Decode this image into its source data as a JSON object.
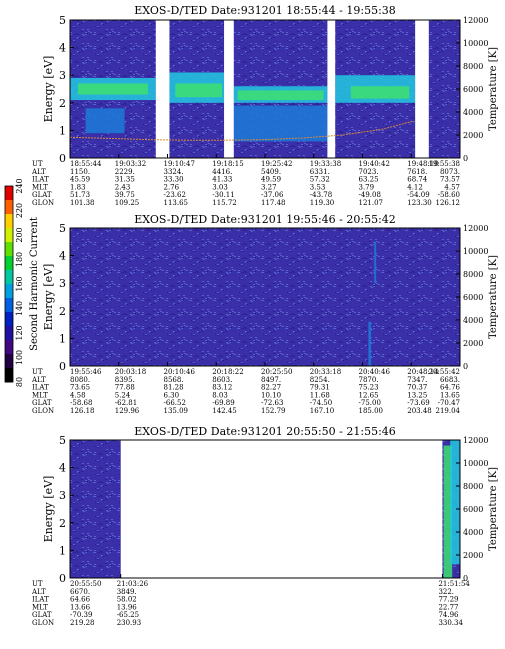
{
  "colors": {
    "background": "#3a2fa8",
    "speckle_dark": "#2a1f90",
    "speckle_light": "#5560c8",
    "band_cyan": "#22c8e0",
    "band_green": "#3fe070",
    "band_blue": "#1c7ad8",
    "gap": "#ffffff",
    "temperature_line": "#d88a3a"
  },
  "colorbar": {
    "label": "Second Harmonic Current",
    "ticks": [
      "240",
      "220",
      "200",
      "180",
      "160",
      "140",
      "120",
      "100",
      "80"
    ],
    "colors": [
      "#e00000",
      "#ff6000",
      "#ffd000",
      "#d0f000",
      "#60e000",
      "#00d030",
      "#00c8a0",
      "#00a0e0",
      "#0060e0",
      "#0020c0",
      "#2010a0",
      "#400880",
      "#200040",
      "#000000"
    ]
  },
  "row_labels": [
    "UT",
    "ALT",
    "ILAT",
    "MLT",
    "GLAT",
    "GLON"
  ],
  "chart_data": [
    {
      "type": "heatmap",
      "title": "EXOS-D/TED   Date:931201   18:55:44 - 19:55:38",
      "ylabel": "Energy [eV]",
      "y2label": "Temperature [K]",
      "yticks": [
        "0",
        "1",
        "2",
        "3",
        "4",
        "5"
      ],
      "ylim": [
        0,
        5
      ],
      "y2ticks": [
        "0",
        "2000",
        "4000",
        "6000",
        "8000",
        "10000",
        "12000"
      ],
      "y2lim": [
        0,
        12000
      ],
      "gaps": [
        [
          0.22,
          0.255
        ],
        [
          0.395,
          0.42
        ],
        [
          0.66,
          0.68
        ],
        [
          0.885,
          0.92
        ]
      ],
      "bands": [
        {
          "x": [
            0.0,
            0.22
          ],
          "y": [
            2.1,
            2.9
          ],
          "color": "band_cyan"
        },
        {
          "x": [
            0.02,
            0.2
          ],
          "y": [
            2.3,
            2.7
          ],
          "color": "band_green"
        },
        {
          "x": [
            0.255,
            0.395
          ],
          "y": [
            2.0,
            3.1
          ],
          "color": "band_cyan"
        },
        {
          "x": [
            0.27,
            0.39
          ],
          "y": [
            2.2,
            2.7
          ],
          "color": "band_green"
        },
        {
          "x": [
            0.42,
            0.66
          ],
          "y": [
            2.0,
            2.6
          ],
          "color": "band_cyan"
        },
        {
          "x": [
            0.43,
            0.65
          ],
          "y": [
            2.1,
            2.45
          ],
          "color": "band_green"
        },
        {
          "x": [
            0.68,
            0.885
          ],
          "y": [
            2.0,
            3.0
          ],
          "color": "band_cyan"
        },
        {
          "x": [
            0.72,
            0.87
          ],
          "y": [
            2.15,
            2.6
          ],
          "color": "band_green"
        },
        {
          "x": [
            0.42,
            0.66
          ],
          "y": [
            0.6,
            1.9
          ],
          "color": "band_blue"
        },
        {
          "x": [
            0.04,
            0.14
          ],
          "y": [
            0.9,
            1.8
          ],
          "color": "band_blue"
        }
      ],
      "temperature": {
        "x": [
          0.0,
          0.1,
          0.2,
          0.3,
          0.4,
          0.5,
          0.6,
          0.7,
          0.8,
          0.88
        ],
        "y": [
          1800,
          1700,
          1600,
          1550,
          1550,
          1600,
          1750,
          2000,
          2500,
          3200
        ]
      },
      "table": [
        [
          "18:55:44",
          "19:03:32",
          "19:10:47",
          "19:18:15",
          "19:25:42",
          "19:33:38",
          "19:40:42",
          "19:48:10",
          "19:55:38"
        ],
        [
          "1150.",
          "2229.",
          "3324.",
          "4416.",
          "5409.",
          "6331.",
          "7023.",
          "7618.",
          "8073."
        ],
        [
          "45.59",
          "31.35",
          "33.30",
          "41.33",
          "49.59",
          "57.32",
          "63.25",
          "68.74",
          "73.57"
        ],
        [
          "1.83",
          "2.43",
          "2.76",
          "3.03",
          "3.27",
          "3.53",
          "3.79",
          "4.12",
          "4.57"
        ],
        [
          "51.73",
          "39.75",
          "-23.62",
          "-30.11",
          "-37.06",
          "-43.78",
          "-49.08",
          "-54.09",
          "-58.60"
        ],
        [
          "101.38",
          "109.25",
          "113.65",
          "115.72",
          "117.48",
          "119.30",
          "121.07",
          "123.30",
          "126.12"
        ]
      ]
    },
    {
      "type": "heatmap",
      "title": "EXOS-D/TED   Date:931201   19:55:46 - 20:55:42",
      "ylabel": "Energy [eV]",
      "y2label": "Temperature [K]",
      "yticks": [
        "0",
        "1",
        "2",
        "3",
        "4",
        "5"
      ],
      "ylim": [
        0,
        5
      ],
      "y2ticks": [
        "0",
        "2000",
        "4000",
        "6000",
        "8000",
        "10000",
        "12000"
      ],
      "y2lim": [
        0,
        12000
      ],
      "gaps": [],
      "bands": [
        {
          "x": [
            0.765,
            0.772
          ],
          "y": [
            0.0,
            1.6
          ],
          "color": "band_blue"
        },
        {
          "x": [
            0.78,
            0.785
          ],
          "y": [
            3.0,
            4.5
          ],
          "color": "band_blue"
        }
      ],
      "temperature": null,
      "table": [
        [
          "19:55:46",
          "20:03:18",
          "20:10:46",
          "20:18:22",
          "20:25:50",
          "20:33:18",
          "20:40:46",
          "20:48:14",
          "20:55:42"
        ],
        [
          "8080.",
          "8395.",
          "8568.",
          "8603.",
          "8497.",
          "8254.",
          "7870.",
          "7347.",
          "6683."
        ],
        [
          "73.65",
          "77.88",
          "81.28",
          "83.12",
          "82.27",
          "79.31",
          "75.23",
          "70.37",
          "64.76"
        ],
        [
          "4.58",
          "5.24",
          "6.30",
          "8.03",
          "10.10",
          "11.68",
          "12.65",
          "13.25",
          "13.65"
        ],
        [
          "-58.68",
          "-62.81",
          "-66.52",
          "-69.89",
          "-72.63",
          "-74.50",
          "-75.00",
          "-73.69",
          "-70.47"
        ],
        [
          "126.18",
          "129.96",
          "135.09",
          "142.45",
          "152.79",
          "167.10",
          "185.00",
          "203.48",
          "219.04"
        ]
      ]
    },
    {
      "type": "heatmap",
      "title": "EXOS-D/TED   Date:931201   20:55:50 - 21:55:46",
      "ylabel": "Energy [eV]",
      "y2label": "Temperature [K]",
      "yticks": [
        "0",
        "1",
        "2",
        "3",
        "4",
        "5"
      ],
      "ylim": [
        0,
        5
      ],
      "y2ticks": [
        "0",
        "2000",
        "4000",
        "6000",
        "8000",
        "10000",
        "12000"
      ],
      "y2lim": [
        0,
        12000
      ],
      "coverage": [
        [
          0.0,
          0.13
        ],
        [
          0.955,
          1.0
        ]
      ],
      "bands": [
        {
          "x": [
            0.958,
            0.98
          ],
          "y": [
            0.0,
            4.8
          ],
          "color": "band_green"
        },
        {
          "x": [
            0.975,
            1.0
          ],
          "y": [
            0.5,
            5.0
          ],
          "color": "band_cyan"
        }
      ],
      "temperature": null,
      "table": [
        [
          "20:55:50",
          "21:03:26",
          "",
          "",
          "",
          "",
          "",
          "",
          "21:51:54"
        ],
        [
          "6670.",
          "3849.",
          "",
          "",
          "",
          "",
          "",
          "",
          "322."
        ],
        [
          "64.66",
          "58.02",
          "",
          "",
          "",
          "",
          "",
          "",
          "77.29"
        ],
        [
          "13.66",
          "13.96",
          "",
          "",
          "",
          "",
          "",
          "",
          "22.77"
        ],
        [
          "-70.39",
          "-65.25",
          "",
          "",
          "",
          "",
          "",
          "",
          "74.96"
        ],
        [
          "219.28",
          "230.93",
          "",
          "",
          "",
          "",
          "",
          "",
          "330.34"
        ]
      ],
      "table_positions": [
        0,
        0.13,
        0.955
      ]
    }
  ]
}
